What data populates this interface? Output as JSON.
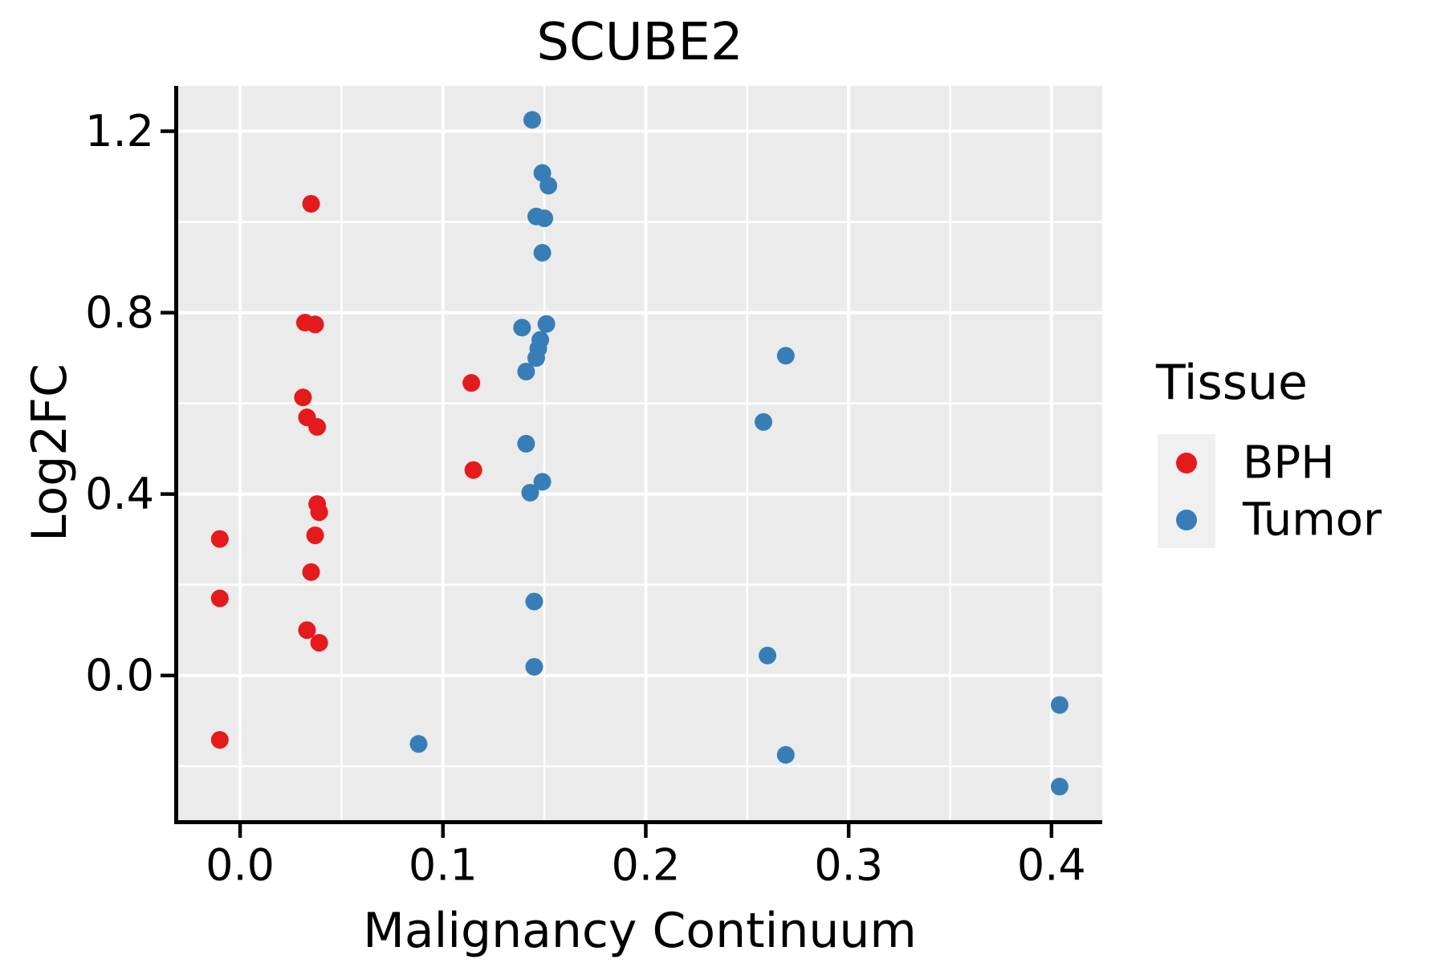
{
  "chart_data": {
    "type": "scatter",
    "title": "SCUBE2",
    "xlabel": "Malignancy Continuum",
    "ylabel": "Log2FC",
    "xlim": [
      -0.0305,
      0.425
    ],
    "ylim": [
      -0.319,
      1.3
    ],
    "grid": true,
    "panel_background": "#ebebeb",
    "gridline_color": "#ffffff",
    "axis_line_color": "#000000",
    "x_major_ticks": [
      0.0,
      0.1,
      0.2,
      0.3,
      0.4
    ],
    "x_tick_labels": [
      "0.0",
      "0.1",
      "0.2",
      "0.3",
      "0.4"
    ],
    "x_minor_gridlines": [
      0.05,
      0.15,
      0.25,
      0.35
    ],
    "y_major_ticks": [
      0.0,
      0.4,
      0.8,
      1.2
    ],
    "y_tick_labels": [
      "0.0",
      "0.4",
      "0.8",
      "1.2"
    ],
    "y_minor_gridlines": [
      -0.2,
      0.2,
      0.6,
      1.0
    ],
    "legend": {
      "title": "Tissue",
      "position": "right",
      "key_background": "#f0f0f0",
      "items": [
        {
          "label": "BPH",
          "color": "#e41a1c"
        },
        {
          "label": "Tumor",
          "color": "#377eb8"
        }
      ]
    },
    "series": [
      {
        "name": "BPH",
        "color": "#e41a1c",
        "points": [
          [
            -0.01,
            0.301
          ],
          [
            -0.01,
            0.17
          ],
          [
            -0.01,
            -0.142
          ],
          [
            0.035,
            1.04
          ],
          [
            0.032,
            0.778
          ],
          [
            0.037,
            0.774
          ],
          [
            0.031,
            0.613
          ],
          [
            0.033,
            0.569
          ],
          [
            0.038,
            0.548
          ],
          [
            0.038,
            0.378
          ],
          [
            0.039,
            0.36
          ],
          [
            0.037,
            0.309
          ],
          [
            0.035,
            0.228
          ],
          [
            0.033,
            0.1
          ],
          [
            0.039,
            0.072
          ],
          [
            0.114,
            0.645
          ],
          [
            0.115,
            0.453
          ]
        ]
      },
      {
        "name": "Tumor",
        "color": "#377eb8",
        "points": [
          [
            0.144,
            1.225
          ],
          [
            0.149,
            1.108
          ],
          [
            0.152,
            1.08
          ],
          [
            0.146,
            1.012
          ],
          [
            0.15,
            1.008
          ],
          [
            0.149,
            0.932
          ],
          [
            0.139,
            0.767
          ],
          [
            0.151,
            0.775
          ],
          [
            0.148,
            0.74
          ],
          [
            0.147,
            0.721
          ],
          [
            0.146,
            0.7
          ],
          [
            0.141,
            0.67
          ],
          [
            0.141,
            0.511
          ],
          [
            0.149,
            0.427
          ],
          [
            0.143,
            0.403
          ],
          [
            0.145,
            0.163
          ],
          [
            0.145,
            0.019
          ],
          [
            0.088,
            -0.151
          ],
          [
            0.269,
            0.705
          ],
          [
            0.258,
            0.559
          ],
          [
            0.26,
            0.044
          ],
          [
            0.269,
            -0.175
          ],
          [
            0.404,
            -0.065
          ],
          [
            0.404,
            -0.245
          ]
        ]
      }
    ]
  }
}
